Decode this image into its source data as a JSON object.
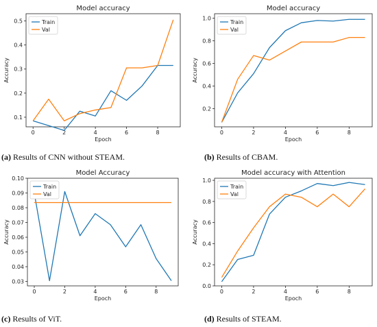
{
  "captions": [
    {
      "letter": "(a)",
      "text": " Results of CNN without STEAM."
    },
    {
      "letter": "(b)",
      "text": " Results of CBAM."
    },
    {
      "letter": "(c)",
      "text": " Results of ViT."
    },
    {
      "letter": "(d)",
      "text": " Results of STEAM."
    }
  ],
  "colors": {
    "train": "#1f77b4",
    "val": "#ff7f0e"
  },
  "chart_data": [
    {
      "type": "line",
      "title": "Model accuracy",
      "xlabel": "Epoch",
      "ylabel": "Accuracy",
      "x": [
        0,
        1,
        2,
        3,
        4,
        5,
        6,
        7,
        8,
        9
      ],
      "xlim": [
        -0.45,
        9.45
      ],
      "ylim": [
        0.06,
        0.53
      ],
      "xticks": [
        0,
        2,
        4,
        6,
        8
      ],
      "yticks": [
        0.1,
        0.2,
        0.3,
        0.4,
        0.5
      ],
      "legend": "top-left",
      "series": [
        {
          "name": "Train",
          "values": [
            0.085,
            0.065,
            0.045,
            0.125,
            0.105,
            0.21,
            0.17,
            0.23,
            0.315,
            0.315
          ]
        },
        {
          "name": "Val",
          "values": [
            0.085,
            0.175,
            0.085,
            0.115,
            0.13,
            0.14,
            0.305,
            0.305,
            0.315,
            0.505
          ]
        }
      ]
    },
    {
      "type": "line",
      "title": "Model accuracy",
      "xlabel": "Epoch",
      "ylabel": "Accuracy",
      "x": [
        0,
        1,
        2,
        3,
        4,
        5,
        6,
        7,
        8,
        9
      ],
      "xlim": [
        -0.45,
        9.45
      ],
      "ylim": [
        0.04,
        1.04
      ],
      "xticks": [
        0,
        2,
        4,
        6,
        8
      ],
      "yticks": [
        0.2,
        0.4,
        0.6,
        0.8,
        1.0
      ],
      "legend": "top-left",
      "series": [
        {
          "name": "Train",
          "values": [
            0.08,
            0.34,
            0.51,
            0.74,
            0.89,
            0.96,
            0.98,
            0.975,
            0.99,
            0.99
          ]
        },
        {
          "name": "Val",
          "values": [
            0.08,
            0.46,
            0.67,
            0.63,
            0.71,
            0.79,
            0.79,
            0.79,
            0.83,
            0.83
          ]
        }
      ]
    },
    {
      "type": "line",
      "title": "Model Accuracy",
      "xlabel": "Epoch",
      "ylabel": "Accuracy",
      "x": [
        0,
        1,
        2,
        3,
        4,
        5,
        6,
        7,
        8,
        9
      ],
      "xlim": [
        -0.45,
        9.45
      ],
      "ylim": [
        0.027,
        0.1
      ],
      "xticks": [
        0,
        2,
        4,
        6,
        8
      ],
      "yticks": [
        0.03,
        0.04,
        0.05,
        0.06,
        0.07,
        0.08,
        0.09,
        0.1
      ],
      "legend": "top-left",
      "series": [
        {
          "name": "Train",
          "values": [
            0.09,
            0.0305,
            0.091,
            0.061,
            0.076,
            0.0685,
            0.0535,
            0.0685,
            0.0455,
            0.0305
          ]
        },
        {
          "name": "Val",
          "values": [
            0.0835,
            0.0835,
            0.0835,
            0.0835,
            0.0835,
            0.0835,
            0.0835,
            0.0835,
            0.0835,
            0.0835
          ]
        }
      ]
    },
    {
      "type": "line",
      "title": "Model accuracy with Attention",
      "xlabel": "Epoch",
      "ylabel": "Accuracy",
      "x": [
        0,
        1,
        2,
        3,
        4,
        5,
        6,
        7,
        8,
        9
      ],
      "xlim": [
        -0.45,
        9.45
      ],
      "ylim": [
        0.0,
        1.02
      ],
      "xticks": [
        0,
        2,
        4,
        6,
        8
      ],
      "yticks": [
        0.0,
        0.2,
        0.4,
        0.6,
        0.8,
        1.0
      ],
      "legend": "top-left",
      "series": [
        {
          "name": "Train",
          "values": [
            0.04,
            0.25,
            0.29,
            0.68,
            0.84,
            0.9,
            0.97,
            0.95,
            0.98,
            0.96
          ]
        },
        {
          "name": "Val",
          "values": [
            0.08,
            0.33,
            0.55,
            0.75,
            0.87,
            0.84,
            0.75,
            0.87,
            0.75,
            0.92
          ]
        }
      ]
    }
  ]
}
